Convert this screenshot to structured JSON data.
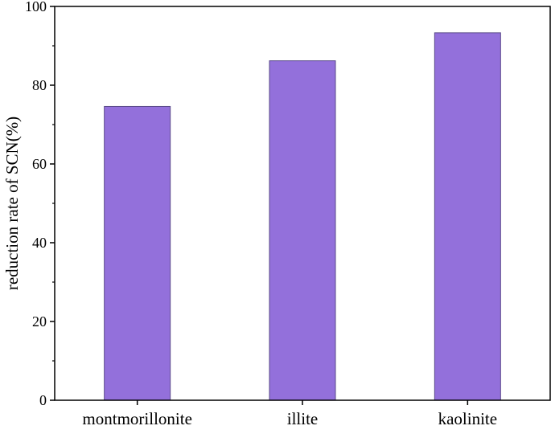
{
  "chart_data": {
    "type": "bar",
    "title": "",
    "xlabel": "",
    "ylabel": "reduction rate of SCN(%)",
    "categories": [
      "montmorillonite",
      "illite",
      "kaolinite"
    ],
    "values": [
      74.6,
      86.2,
      93.3
    ],
    "ylim": [
      0,
      100
    ],
    "yticks": [
      0,
      20,
      40,
      60,
      80,
      100
    ],
    "grid": false,
    "legend": "none",
    "bar_color": "#9370DB",
    "bar_edge_color": "#5a4a8a"
  }
}
